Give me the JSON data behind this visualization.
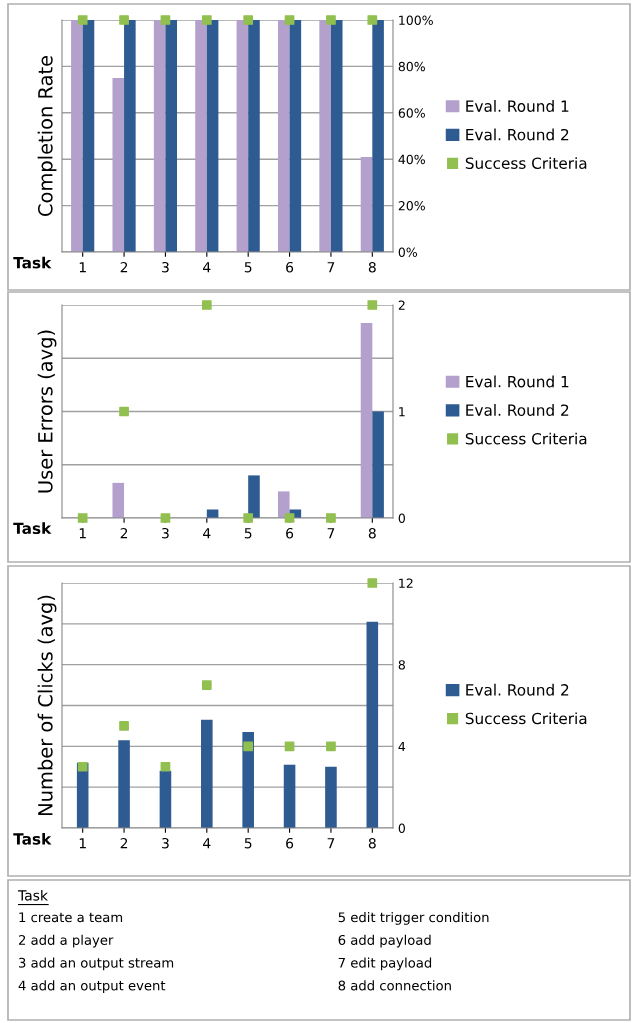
{
  "chart_data": [
    {
      "type": "bar",
      "ylabel": "Completion Rate",
      "xlabel": "Task",
      "categories": [
        "1",
        "2",
        "3",
        "4",
        "5",
        "6",
        "7",
        "8"
      ],
      "ylim": [
        0,
        100
      ],
      "yticks": [
        {
          "value": 0,
          "label": "0%"
        },
        {
          "value": 20,
          "label": "20%"
        },
        {
          "value": 40,
          "label": "40%"
        },
        {
          "value": 60,
          "label": "60%"
        },
        {
          "value": 80,
          "label": "80%"
        },
        {
          "value": 100,
          "label": "100%"
        }
      ],
      "grid": "y",
      "legend": "right",
      "series": [
        {
          "name": "Eval. Round 1",
          "color": "#b4a0cc",
          "values": [
            100,
            75,
            100,
            100,
            100,
            100,
            100,
            41
          ]
        },
        {
          "name": "Eval. Round 2",
          "color": "#2e5b91",
          "values": [
            100,
            100,
            100,
            100,
            100,
            100,
            100,
            100
          ]
        },
        {
          "name": "Success Criteria",
          "type": "scatter",
          "marker": "square",
          "color": "#92c050",
          "values": [
            100,
            100,
            100,
            100,
            100,
            100,
            100,
            100
          ]
        }
      ]
    },
    {
      "type": "bar",
      "ylabel": "User Errors (avg)",
      "xlabel": "Task",
      "categories": [
        "1",
        "2",
        "3",
        "4",
        "5",
        "6",
        "7",
        "8"
      ],
      "ylim": [
        0,
        2
      ],
      "yticks": [
        0,
        {
          "value": 0.5,
          "label": null
        },
        1,
        {
          "value": 1.5,
          "label": null
        },
        2
      ],
      "grid": "y",
      "legend": "right",
      "series": [
        {
          "name": "Eval. Round 1",
          "color": "#b4a0cc",
          "values": [
            0,
            0.33,
            0,
            0,
            0,
            0.25,
            0,
            1.83
          ]
        },
        {
          "name": "Eval. Round 2",
          "color": "#2e5b91",
          "values": [
            0,
            0,
            0,
            0.08,
            0.4,
            0.08,
            0,
            1.0
          ]
        },
        {
          "name": "Success Criteria",
          "type": "scatter",
          "marker": "square",
          "color": "#92c050",
          "values": [
            0,
            1,
            0,
            2,
            0,
            0,
            0,
            2
          ]
        }
      ]
    },
    {
      "type": "bar",
      "ylabel": "Number of Clicks (avg)",
      "xlabel": "Task",
      "categories": [
        "1",
        "2",
        "3",
        "4",
        "5",
        "6",
        "7",
        "8"
      ],
      "ylim": [
        0,
        12
      ],
      "yticks": [
        0,
        {
          "value": 2,
          "label": null
        },
        4,
        {
          "value": 6,
          "label": null
        },
        8,
        {
          "value": 10,
          "label": null
        },
        12
      ],
      "grid": "y",
      "legend": "right",
      "series": [
        {
          "name": "Eval. Round 2",
          "color": "#2e5b91",
          "values": [
            3.2,
            4.3,
            2.8,
            5.3,
            4.7,
            3.1,
            3.0,
            10.1
          ]
        },
        {
          "name": "Success Criteria",
          "type": "scatter",
          "marker": "square",
          "color": "#92c050",
          "values": [
            3,
            5,
            3,
            7,
            4,
            4,
            4,
            12
          ]
        }
      ]
    },
    {
      "type": "other",
      "title": "Task",
      "annotations": [
        "1 create a team",
        "2 add a player",
        "3 add an output stream",
        "4 add an output event",
        "5 edit trigger condition",
        "6 add payload",
        "7 edit payload",
        "8 add connection"
      ]
    }
  ]
}
